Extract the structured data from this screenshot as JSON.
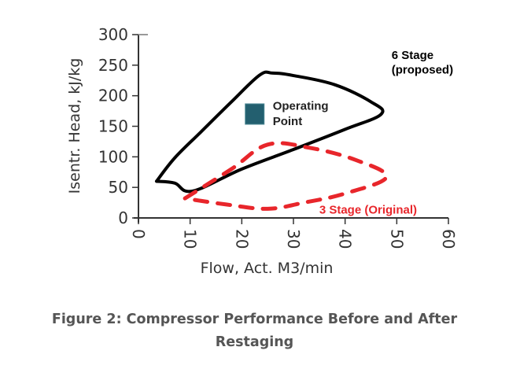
{
  "chart_data": {
    "type": "line",
    "title": "",
    "xlabel": "Flow, Act. M3/min",
    "ylabel": "Isentr. Head, kJ/kg",
    "xlim": [
      0,
      60
    ],
    "ylim": [
      0,
      300
    ],
    "x_ticks": [
      "0",
      "10",
      "20",
      "30",
      "40",
      "50",
      "60"
    ],
    "y_ticks": [
      "0",
      "50",
      "100",
      "150",
      "200",
      "250",
      "300"
    ],
    "grid": false,
    "legend": "none (inline annotations)",
    "series": [
      {
        "name": "6 Stage (proposed)",
        "style": "solid",
        "color": "#000000",
        "closed": true,
        "points": [
          [
            3.5,
            60
          ],
          [
            7,
            57
          ],
          [
            10.5,
            44
          ],
          [
            20,
            80
          ],
          [
            30,
            112
          ],
          [
            40,
            145
          ],
          [
            47,
            170
          ],
          [
            45,
            190
          ],
          [
            38,
            218
          ],
          [
            30,
            233
          ],
          [
            26,
            237
          ],
          [
            23.5,
            234
          ],
          [
            18,
            190
          ],
          [
            12,
            140
          ],
          [
            7,
            98
          ],
          [
            3.5,
            60
          ]
        ]
      },
      {
        "name": "3 Stage (Original)",
        "style": "dashed",
        "color": "#e8262b",
        "closed": true,
        "points": [
          [
            9,
            32
          ],
          [
            18,
            80
          ],
          [
            25,
            120
          ],
          [
            33,
            115
          ],
          [
            42,
            95
          ],
          [
            48,
            67
          ],
          [
            40,
            40
          ],
          [
            32,
            25
          ],
          [
            25,
            15
          ],
          [
            17,
            22
          ],
          [
            9,
            32
          ]
        ]
      },
      {
        "name": "Operating Point",
        "style": "marker-square",
        "color": "#235f6f",
        "points": [
          [
            22.5,
            170
          ]
        ]
      }
    ],
    "annotations": [
      {
        "text": "6 Stage",
        "x": 49,
        "y": 260,
        "color": "#000000"
      },
      {
        "text": "(proposed)",
        "x": 49,
        "y": 236,
        "color": "#000000"
      },
      {
        "text": "Operating",
        "x": 26,
        "y": 177,
        "color": "#222222"
      },
      {
        "text": "Point",
        "x": 26,
        "y": 152,
        "color": "#222222"
      },
      {
        "text": "3 Stage (Original)",
        "x": 35,
        "y": 7,
        "color": "#e8262b"
      }
    ]
  },
  "caption": {
    "line1": "Figure 2: Compressor Performance Before and After",
    "line2": "Restaging"
  },
  "colors": {
    "axis": "#333333",
    "six_stage": "#000000",
    "three_stage": "#e8262b",
    "operating_point": "#235f6f",
    "caption": "#555555"
  }
}
